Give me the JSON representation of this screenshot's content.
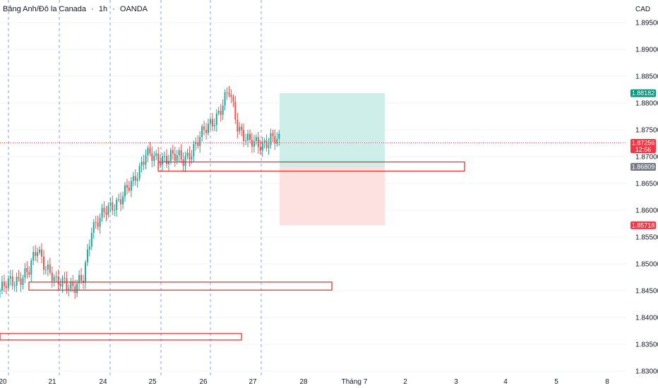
{
  "header": {
    "symbol": "Bảng Anh/Đô la Canada",
    "separator1": "·",
    "interval": "1h",
    "separator2": "·",
    "source": "OANDA",
    "currency": "CAD"
  },
  "colors": {
    "up": "#26a69a",
    "down": "#ef5350",
    "zone": "#e53935",
    "target_fill": "#cdeee9",
    "stop_fill": "#fde0e0",
    "target_badge": "#089981",
    "stop_badge": "#f23645",
    "entry_badge": "#787b86",
    "session_line": "#5b7fd6",
    "grid": "#f0f3fa"
  },
  "chart_data": {
    "type": "candlestick",
    "y_axis": {
      "ylim": [
        1.83,
        1.9
      ],
      "ticks": [
        "1.89500",
        "1.89000",
        "1.88500",
        "1.88000",
        "1.87500",
        "1.87000",
        "1.86500",
        "1.86000",
        "1.85500",
        "1.85000",
        "1.84500",
        "1.84000",
        "1.83500",
        "1.83000"
      ],
      "tick_values": [
        1.895,
        1.89,
        1.885,
        1.88,
        1.875,
        1.87,
        1.865,
        1.86,
        1.855,
        1.85,
        1.845,
        1.84,
        1.835,
        1.83
      ]
    },
    "x_axis": {
      "labels": [
        "20",
        "21",
        "24",
        "25",
        "26",
        "27",
        "28",
        "Tháng 7",
        "2",
        "3",
        "4",
        "5",
        "8"
      ]
    },
    "price_levels": {
      "target": {
        "value": 1.88182,
        "label": "1.88182"
      },
      "current": {
        "value": 1.87256,
        "label": "1.87256",
        "countdown": "12:56"
      },
      "entry": {
        "value": 1.86809,
        "label": "1.86809"
      },
      "stop": {
        "value": 1.85718,
        "label": "1.85718"
      }
    },
    "zones": [
      {
        "name": "zone-upper",
        "y_top": 1.869,
        "y_bottom": 1.8673
      },
      {
        "name": "zone-middle",
        "y_top": 1.8466,
        "y_bottom": 1.8451
      },
      {
        "name": "zone-lower",
        "y_top": 1.837,
        "y_bottom": 1.8358
      }
    ],
    "path_nodes": [
      [
        0,
        1.845
      ],
      [
        5,
        1.8465
      ],
      [
        14,
        1.8485
      ],
      [
        18,
        1.853
      ],
      [
        21,
        1.8505
      ],
      [
        27,
        1.846
      ],
      [
        31,
        1.847
      ],
      [
        36,
        1.8455
      ],
      [
        40,
        1.847
      ],
      [
        44,
        1.857
      ],
      [
        52,
        1.86
      ],
      [
        58,
        1.8625
      ],
      [
        64,
        1.865
      ],
      [
        70,
        1.871
      ],
      [
        75,
        1.869
      ],
      [
        82,
        1.8705
      ],
      [
        88,
        1.869
      ],
      [
        94,
        1.8725
      ],
      [
        100,
        1.8755
      ],
      [
        106,
        1.879
      ],
      [
        110,
        1.882
      ],
      [
        114,
        1.876
      ],
      [
        120,
        1.8725
      ],
      [
        124,
        1.872
      ],
      [
        130,
        1.8735
      ],
      [
        134,
        1.8726
      ]
    ]
  }
}
